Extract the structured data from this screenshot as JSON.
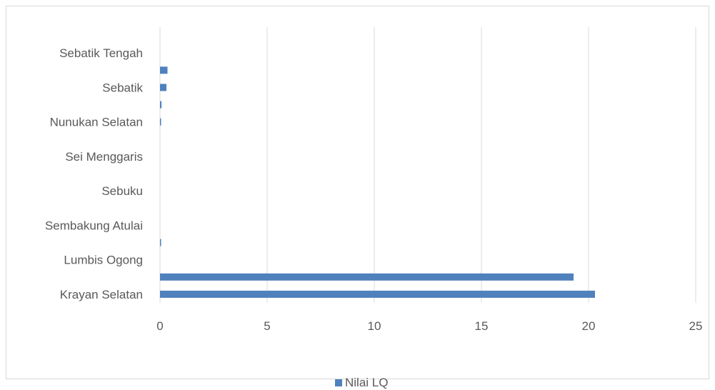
{
  "chart_data": {
    "type": "bar",
    "orientation": "horizontal",
    "categories": [
      "Krayan Selatan",
      "",
      "Lumbis Ogong",
      "",
      "Sembakung Atulai",
      "",
      "Sebuku",
      "",
      "Sei Menggaris",
      "",
      "Nunukan Selatan",
      "",
      "Sebatik",
      "",
      "Sebatik Tengah",
      ""
    ],
    "series": [
      {
        "name": "Nilai LQ",
        "values": [
          20.3,
          19.3,
          0,
          0.03,
          0,
          0,
          0,
          0,
          0,
          0,
          0.05,
          0.07,
          0.3,
          0.35,
          0,
          0
        ]
      }
    ],
    "x_ticks": [
      "0",
      "5",
      "10",
      "15",
      "20",
      "25"
    ],
    "xlim": [
      0,
      25
    ],
    "grid": "vertical",
    "legend": "bottom",
    "color": "#4f81bd"
  }
}
